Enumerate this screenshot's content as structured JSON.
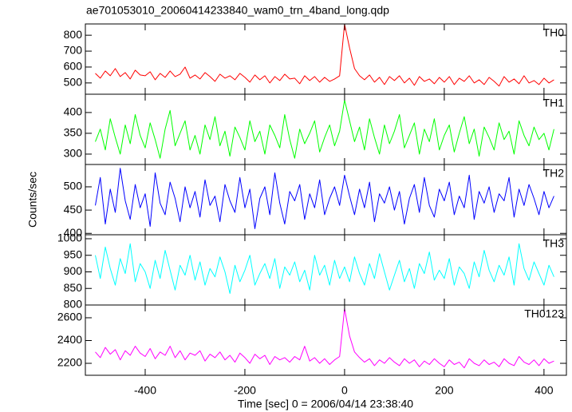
{
  "chart_data": {
    "type": "line",
    "title": "ae701053010_20060414233840_wam0_trn_4band_long.qdp",
    "xlabel": "Time [sec] 0 = 2006/04/14 23:38:40",
    "ylabel": "Counts/sec",
    "xlim": [
      -520,
      445
    ],
    "xticks": [
      -400,
      -200,
      0,
      200,
      400
    ],
    "x": [
      -500,
      -490,
      -480,
      -470,
      -460,
      -450,
      -440,
      -430,
      -420,
      -410,
      -400,
      -390,
      -380,
      -370,
      -360,
      -350,
      -340,
      -330,
      -320,
      -310,
      -300,
      -290,
      -280,
      -270,
      -260,
      -250,
      -240,
      -230,
      -220,
      -210,
      -200,
      -190,
      -180,
      -170,
      -160,
      -150,
      -140,
      -130,
      -120,
      -110,
      -100,
      -90,
      -80,
      -70,
      -60,
      -50,
      -40,
      -30,
      -20,
      -10,
      0,
      10,
      20,
      30,
      40,
      50,
      60,
      70,
      80,
      90,
      100,
      110,
      120,
      130,
      140,
      150,
      160,
      170,
      180,
      190,
      200,
      210,
      220,
      230,
      240,
      250,
      260,
      270,
      280,
      290,
      300,
      310,
      320,
      330,
      340,
      350,
      360,
      370,
      380,
      390,
      400,
      410,
      420
    ],
    "series": [
      {
        "name": "TH0",
        "color": "#ff0000",
        "ylim": [
          429,
          871
        ],
        "yticks": [
          500,
          600,
          700,
          800
        ],
        "values": [
          560,
          530,
          575,
          545,
          590,
          540,
          565,
          525,
          580,
          550,
          545,
          570,
          520,
          560,
          535,
          575,
          540,
          555,
          600,
          530,
          550,
          525,
          565,
          540,
          510,
          555,
          530,
          545,
          520,
          560,
          535,
          505,
          550,
          520,
          545,
          500,
          540,
          515,
          555,
          525,
          530,
          495,
          545,
          515,
          540,
          505,
          535,
          510,
          525,
          545,
          870,
          720,
          590,
          545,
          520,
          550,
          505,
          535,
          490,
          540,
          515,
          545,
          500,
          530,
          485,
          540,
          510,
          525,
          495,
          535,
          505,
          540,
          490,
          530,
          510,
          545,
          500,
          520,
          490,
          535,
          510,
          480,
          540,
          505,
          525,
          495,
          545,
          500,
          515,
          490,
          530,
          500,
          520
        ]
      },
      {
        "name": "TH1",
        "color": "#00ff00",
        "ylim": [
          275,
          444
        ],
        "yticks": [
          300,
          350,
          400
        ],
        "values": [
          330,
          360,
          310,
          385,
          340,
          300,
          370,
          325,
          395,
          345,
          315,
          375,
          335,
          290,
          360,
          405,
          320,
          350,
          380,
          310,
          345,
          300,
          370,
          335,
          390,
          320,
          355,
          295,
          365,
          340,
          310,
          380,
          330,
          355,
          300,
          370,
          345,
          315,
          395,
          335,
          290,
          360,
          325,
          350,
          380,
          305,
          340,
          370,
          320,
          355,
          430,
          380,
          330,
          365,
          310,
          385,
          340,
          300,
          370,
          325,
          355,
          395,
          315,
          345,
          375,
          300,
          360,
          330,
          385,
          310,
          345,
          370,
          305,
          350,
          390,
          325,
          360,
          295,
          365,
          340,
          310,
          375,
          335,
          355,
          300,
          380,
          345,
          320,
          365,
          335,
          350,
          310,
          360
        ]
      },
      {
        "name": "TH2",
        "color": "#0000ff",
        "ylim": [
          397,
          548
        ],
        "yticks": [
          400,
          450,
          500
        ],
        "values": [
          460,
          520,
          420,
          495,
          445,
          540,
          470,
          430,
          505,
          455,
          485,
          415,
          530,
          465,
          440,
          510,
          475,
          425,
          500,
          455,
          490,
          435,
          515,
          460,
          480,
          425,
          505,
          470,
          445,
          520,
          455,
          495,
          410,
          475,
          500,
          440,
          530,
          465,
          420,
          490,
          470,
          505,
          430,
          485,
          455,
          515,
          440,
          475,
          500,
          460,
          525,
          480,
          440,
          495,
          455,
          510,
          425,
          485,
          465,
          500,
          450,
          490,
          420,
          475,
          505,
          445,
          520,
          460,
          435,
          495,
          470,
          510,
          440,
          480,
          455,
          525,
          430,
          490,
          465,
          500,
          445,
          485,
          470,
          520,
          435,
          495,
          460,
          505,
          475,
          440,
          490,
          455,
          480
        ]
      },
      {
        "name": "TH3",
        "color": "#00ffff",
        "ylim": [
          800,
          1012
        ],
        "yticks": [
          800,
          850,
          900,
          950,
          1000
        ],
        "values": [
          950,
          880,
          975,
          910,
          860,
          940,
          895,
          985,
          870,
          925,
          900,
          850,
          935,
          880,
          965,
          905,
          845,
          920,
          890,
          950,
          875,
          930,
          860,
          910,
          885,
          945,
          900,
          835,
          920,
          870,
          905,
          950,
          860,
          895,
          925,
          880,
          940,
          850,
          915,
          890,
          930,
          870,
          905,
          845,
          950,
          890,
          920,
          860,
          935,
          880,
          915,
          870,
          945,
          895,
          860,
          925,
          880,
          955,
          900,
          845,
          890,
          935,
          870,
          910,
          850,
          925,
          895,
          960,
          875,
          905,
          880,
          940,
          860,
          915,
          895,
          850,
          930,
          885,
          965,
          905,
          870,
          920,
          890,
          945,
          860,
          985,
          910,
          875,
          930,
          895,
          860,
          920,
          885
        ]
      },
      {
        "name": "TH0123",
        "color": "#ff00ff",
        "ylim": [
          2095,
          2712
        ],
        "yticks": [
          2200,
          2400,
          2600
        ],
        "values": [
          2300,
          2250,
          2340,
          2280,
          2320,
          2230,
          2310,
          2270,
          2350,
          2290,
          2260,
          2330,
          2240,
          2300,
          2270,
          2350,
          2250,
          2310,
          2230,
          2290,
          2270,
          2310,
          2220,
          2280,
          2250,
          2300,
          2230,
          2270,
          2210,
          2290,
          2250,
          2200,
          2280,
          2240,
          2270,
          2190,
          2260,
          2230,
          2250,
          2210,
          2260,
          2230,
          2350,
          2220,
          2250,
          2200,
          2240,
          2190,
          2230,
          2260,
          2680,
          2440,
          2300,
          2250,
          2210,
          2240,
          2180,
          2230,
          2200,
          2250,
          2210,
          2180,
          2240,
          2200,
          2230,
          2170,
          2220,
          2190,
          2240,
          2200,
          2170,
          2230,
          2190,
          2210,
          2160,
          2240,
          2200,
          2180,
          2230,
          2190,
          2210,
          2170,
          2240,
          2200,
          2180,
          2260,
          2210,
          2190,
          2230,
          2180,
          2240,
          2200,
          2220
        ]
      }
    ]
  }
}
